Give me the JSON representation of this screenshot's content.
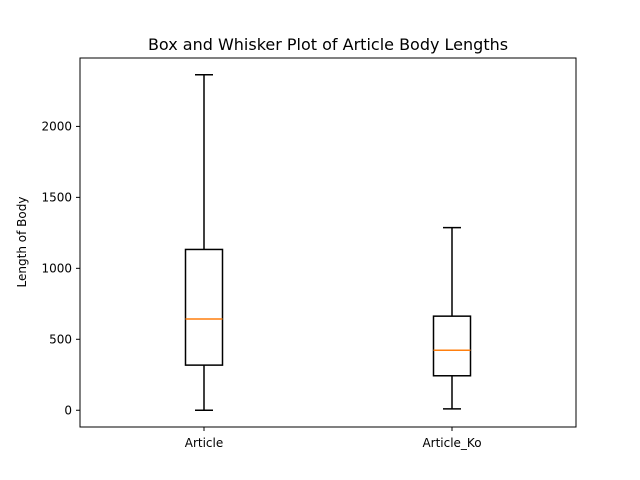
{
  "chart_data": {
    "type": "box",
    "title": "Box and Whisker Plot of Article Body Lengths",
    "xlabel": "",
    "ylabel": "Length of Body",
    "categories": [
      "Article",
      "Article_Ko"
    ],
    "boxes": [
      {
        "category": "Article",
        "whisker_low": 0,
        "q1": 318,
        "median": 643,
        "q3": 1133,
        "whisker_high": 2364
      },
      {
        "category": "Article_Ko",
        "whisker_low": 10,
        "q1": 243,
        "median": 423,
        "q3": 663,
        "whisker_high": 1287
      }
    ],
    "yticks": [
      0,
      500,
      1000,
      1500,
      2000
    ],
    "ylim": [
      -118,
      2482
    ],
    "grid": false,
    "legend": "none",
    "colors": {
      "box": "#000000",
      "median": "#ff7f0e",
      "whisker": "#000000"
    }
  }
}
